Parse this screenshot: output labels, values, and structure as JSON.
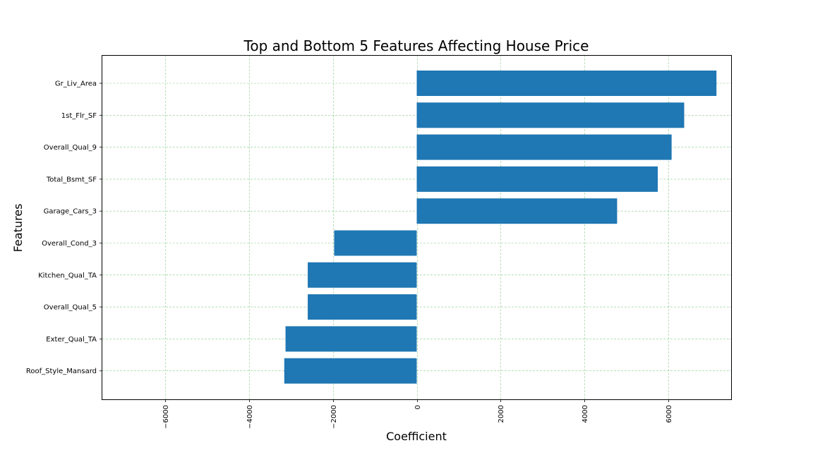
{
  "chart_data": {
    "type": "bar",
    "orientation": "horizontal",
    "title": "Top and Bottom 5 Features Affecting House Price",
    "xlabel": "Coefficient",
    "ylabel": "Features",
    "categories": [
      "Gr_Liv_Area",
      "1st_Flr_SF",
      "Overall_Qual_9",
      "Total_Bsmt_SF",
      "Garage_Cars_3",
      "Overall_Cond_3",
      "Kitchen_Qual_TA",
      "Overall_Qual_5",
      "Exter_Qual_TA",
      "Roof_Style_Mansard"
    ],
    "values": [
      7150,
      6380,
      6080,
      5750,
      4780,
      -1970,
      -2600,
      -2600,
      -3130,
      -3160
    ],
    "xlim": [
      -7500,
      7500
    ],
    "xticks": [
      -6000,
      -4000,
      -2000,
      0,
      2000,
      4000,
      6000
    ],
    "xtick_labels": [
      "−6000",
      "−4000",
      "−2000",
      "0",
      "2000",
      "4000",
      "6000"
    ],
    "xtick_rotation": "vertical",
    "grid": true,
    "grid_color": "#2ca02c",
    "bar_color": "#1f77b4"
  }
}
